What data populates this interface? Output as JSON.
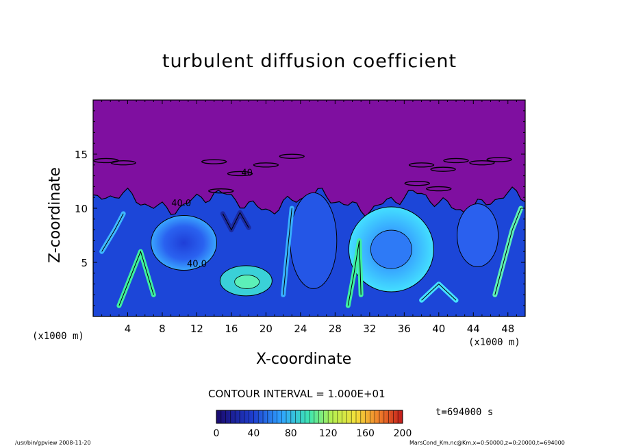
{
  "chart_data": {
    "type": "heatmap",
    "title": "turbulent diffusion coefficient",
    "xlabel": "X-coordinate",
    "ylabel": "Z-coordinate",
    "x_unit": "(x1000 m)",
    "z_unit": "(x1000 m)",
    "xlim": [
      0,
      50
    ],
    "ylim": [
      0,
      20
    ],
    "x_ticks": [
      "4",
      "8",
      "12",
      "16",
      "20",
      "24",
      "28",
      "32",
      "36",
      "40",
      "44",
      "48"
    ],
    "y_ticks": [
      "5",
      "10",
      "15"
    ],
    "x_tick_values": [
      4,
      8,
      12,
      16,
      20,
      24,
      28,
      32,
      36,
      40,
      44,
      48
    ],
    "y_tick_values": [
      5,
      10,
      15
    ],
    "contour_interval": "CONTOUR INTERVAL = 1.000E+01",
    "colorbar_ticks": [
      "0",
      "40",
      "80",
      "120",
      "160",
      "200"
    ],
    "colorbar_range": [
      0,
      200
    ],
    "contour_labels": [
      {
        "text": "40.0",
        "x": 12.0,
        "z": 4.6
      },
      {
        "text": "40.0",
        "x": 10.2,
        "z": 10.2
      },
      {
        "text": "40",
        "x": 17.8,
        "z": 13.0
      }
    ],
    "upper_region_value": 0,
    "background_color": "#7f0fa0"
  },
  "time_label": "t=694000 s",
  "footer_left": "/usr/bin/gpview   2008-11-20",
  "footer_right": "MarsCond_Km.nc@Km,x=0:50000,z=0:20000,t=694000"
}
